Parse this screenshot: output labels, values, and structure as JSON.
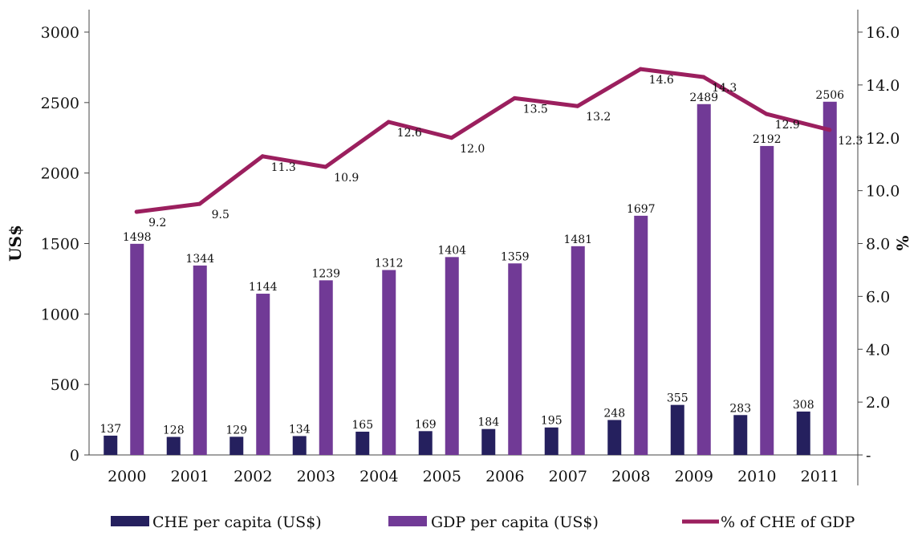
{
  "chart_data": {
    "type": "bar",
    "categories": [
      "2000",
      "2001",
      "2002",
      "2003",
      "2004",
      "2005",
      "2006",
      "2007",
      "2008",
      "2009",
      "2010",
      "2011"
    ],
    "series": [
      {
        "name": "CHE per capita (US$)",
        "type": "bar",
        "axis": "left",
        "color": "#25205e",
        "values": [
          137,
          128,
          129,
          134,
          165,
          169,
          184,
          195,
          248,
          355,
          283,
          308
        ]
      },
      {
        "name": "GDP per capita (US$)",
        "type": "bar",
        "axis": "left",
        "color": "#713a96",
        "values": [
          1498,
          1344,
          1144,
          1239,
          1312,
          1404,
          1359,
          1481,
          1697,
          2489,
          2192,
          2506
        ]
      },
      {
        "name": "% of CHE of GDP",
        "type": "line",
        "axis": "right",
        "color": "#9b1f5e",
        "values": [
          9.2,
          9.5,
          11.3,
          10.9,
          12.6,
          12.0,
          13.5,
          13.2,
          14.6,
          14.3,
          12.9,
          12.3
        ]
      }
    ],
    "y_left": {
      "label": "US$",
      "range": [
        0,
        3000
      ],
      "ticks": [
        "0",
        "500",
        "1000",
        "1500",
        "2000",
        "2500",
        "3000"
      ]
    },
    "y_right": {
      "label": "%",
      "range": [
        0,
        16
      ],
      "ticks": [
        "-",
        "2.0",
        "4.0",
        "6.0",
        "8.0",
        "10.0",
        "12.0",
        "14.0",
        "16.0"
      ]
    },
    "grid": false,
    "legend_position": "bottom"
  }
}
